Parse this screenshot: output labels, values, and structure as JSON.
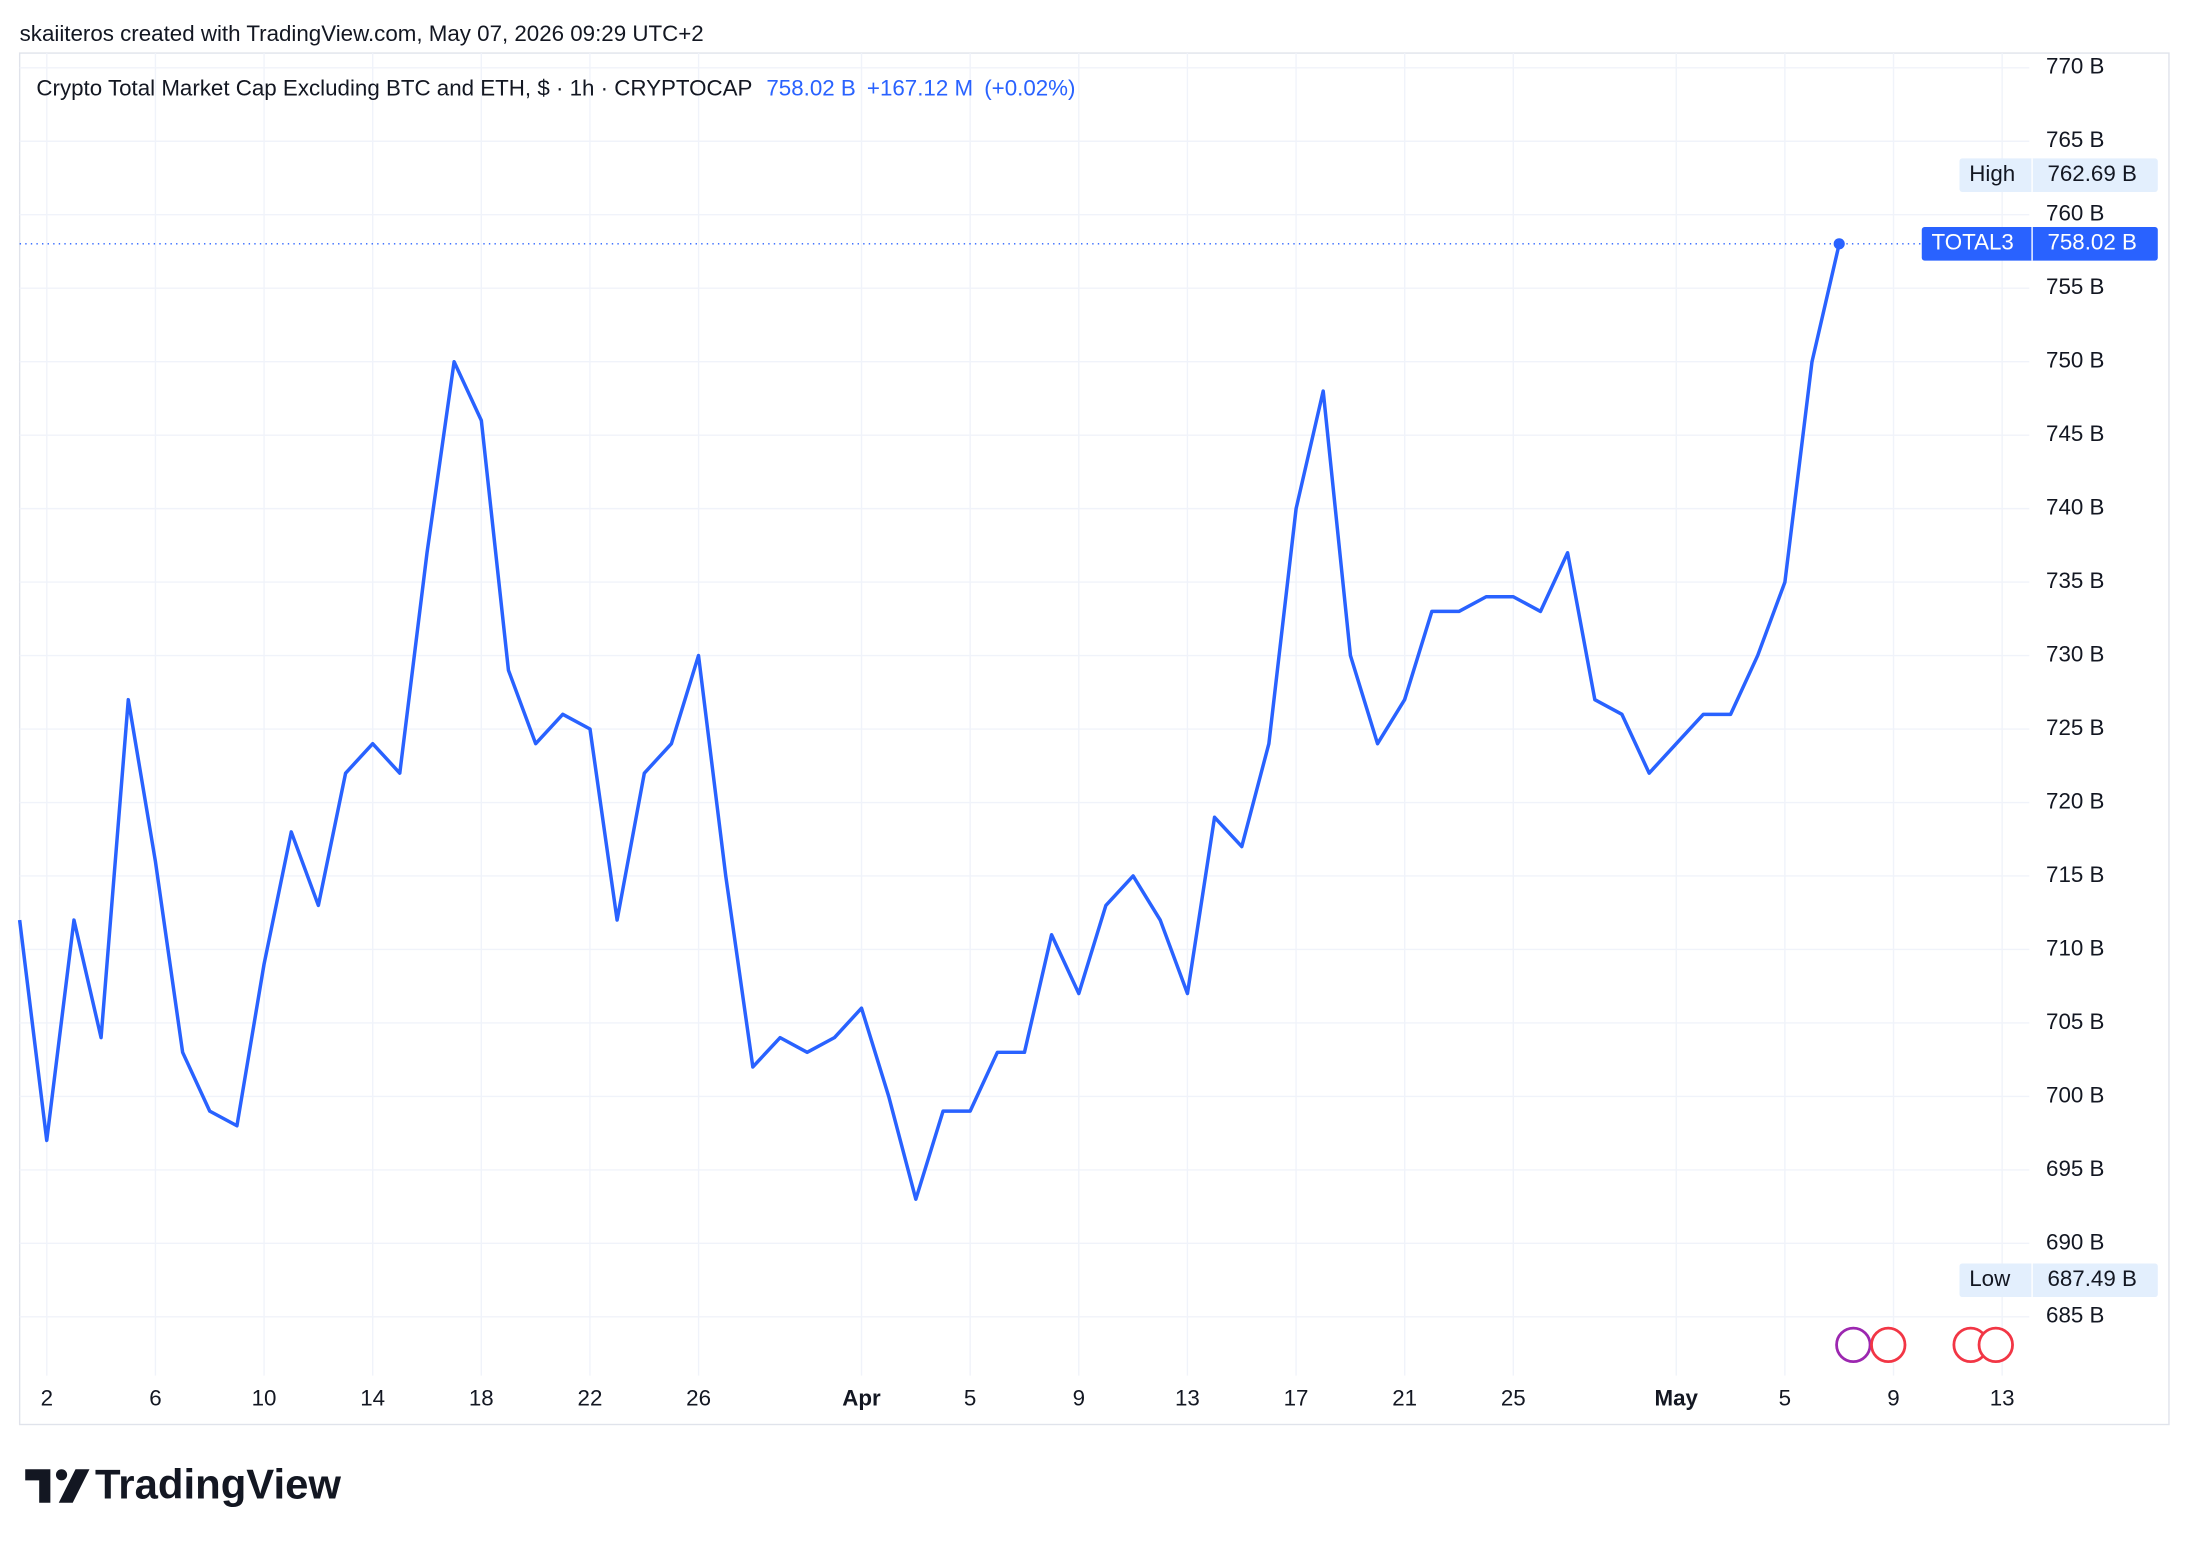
{
  "attribution": "skaiiteros created with TradingView.com, May 07, 2026 09:29 UTC+2",
  "brand": "TradingView",
  "chart_data": {
    "type": "line",
    "title": "Crypto Total Market Cap Excluding BTC and ETH, $ · 1h · CRYPTOCAP",
    "header_price": "758.02 B",
    "header_change": "+167.12 M",
    "header_change_pct": "(+0.02%)",
    "x": [
      "2026-03-01",
      "2026-03-02",
      "2026-03-03",
      "2026-03-04",
      "2026-03-05",
      "2026-03-06",
      "2026-03-07",
      "2026-03-08",
      "2026-03-09",
      "2026-03-10",
      "2026-03-11",
      "2026-03-12",
      "2026-03-13",
      "2026-03-14",
      "2026-03-15",
      "2026-03-16",
      "2026-03-17",
      "2026-03-18",
      "2026-03-19",
      "2026-03-20",
      "2026-03-21",
      "2026-03-22",
      "2026-03-23",
      "2026-03-24",
      "2026-03-25",
      "2026-03-26",
      "2026-03-27",
      "2026-03-28",
      "2026-03-29",
      "2026-03-30",
      "2026-03-31",
      "2026-04-01",
      "2026-04-02",
      "2026-04-03",
      "2026-04-04",
      "2026-04-05",
      "2026-04-06",
      "2026-04-07",
      "2026-04-08",
      "2026-04-09",
      "2026-04-10",
      "2026-04-11",
      "2026-04-12",
      "2026-04-13",
      "2026-04-14",
      "2026-04-15",
      "2026-04-16",
      "2026-04-17",
      "2026-04-18",
      "2026-04-19",
      "2026-04-20",
      "2026-04-21",
      "2026-04-22",
      "2026-04-23",
      "2026-04-24",
      "2026-04-25",
      "2026-04-26",
      "2026-04-27",
      "2026-04-28",
      "2026-04-29",
      "2026-04-30",
      "2026-05-01",
      "2026-05-02",
      "2026-05-03",
      "2026-05-04",
      "2026-05-05",
      "2026-05-06",
      "2026-05-07"
    ],
    "series": [
      {
        "name": "TOTAL3",
        "color": "#2962ff",
        "values": [
          712,
          697,
          712,
          704,
          727,
          716,
          703,
          699,
          698,
          709,
          718,
          713,
          722,
          724,
          722,
          737,
          750,
          746,
          729,
          724,
          726,
          725,
          712,
          722,
          724,
          730,
          715,
          702,
          704,
          703,
          704,
          706,
          700,
          693,
          699,
          699,
          703,
          703,
          711,
          707,
          713,
          715,
          712,
          707,
          719,
          717,
          724,
          740,
          748,
          730,
          724,
          727,
          733,
          733,
          734,
          734,
          733,
          737,
          727,
          726,
          722,
          724,
          726,
          726,
          730,
          735,
          750,
          758.02
        ],
        "value_labels": {
          "67": "758.02 B"
        }
      }
    ],
    "high": {
      "label": "High",
      "value": 762.69,
      "value_label": "762.69 B"
    },
    "low": {
      "label": "Low",
      "value": 687.49,
      "value_label": "687.49 B"
    },
    "xlim": [
      "2026-03-01",
      "2026-05-14"
    ],
    "xticks": [
      {
        "value": "2026-03-02",
        "label": "2"
      },
      {
        "value": "2026-03-06",
        "label": "6"
      },
      {
        "value": "2026-03-10",
        "label": "10"
      },
      {
        "value": "2026-03-14",
        "label": "14"
      },
      {
        "value": "2026-03-18",
        "label": "18"
      },
      {
        "value": "2026-03-22",
        "label": "22"
      },
      {
        "value": "2026-03-26",
        "label": "26"
      },
      {
        "value": "2026-04-01",
        "label": "Apr"
      },
      {
        "value": "2026-04-05",
        "label": "5"
      },
      {
        "value": "2026-04-09",
        "label": "9"
      },
      {
        "value": "2026-04-13",
        "label": "13"
      },
      {
        "value": "2026-04-17",
        "label": "17"
      },
      {
        "value": "2026-04-21",
        "label": "21"
      },
      {
        "value": "2026-04-25",
        "label": "25"
      },
      {
        "value": "2026-05-01",
        "label": "May"
      },
      {
        "value": "2026-05-05",
        "label": "5"
      },
      {
        "value": "2026-05-09",
        "label": "9"
      },
      {
        "value": "2026-05-13",
        "label": "13"
      }
    ],
    "ylim": [
      681,
      771
    ],
    "yticks": [
      {
        "value": 685,
        "label": "685 B"
      },
      {
        "value": 690,
        "label": "690 B"
      },
      {
        "value": 695,
        "label": "695 B"
      },
      {
        "value": 700,
        "label": "700 B"
      },
      {
        "value": 705,
        "label": "705 B"
      },
      {
        "value": 710,
        "label": "710 B"
      },
      {
        "value": 715,
        "label": "715 B"
      },
      {
        "value": 720,
        "label": "720 B"
      },
      {
        "value": 725,
        "label": "725 B"
      },
      {
        "value": 730,
        "label": "730 B"
      },
      {
        "value": 735,
        "label": "735 B"
      },
      {
        "value": 740,
        "label": "740 B"
      },
      {
        "value": 745,
        "label": "745 B"
      },
      {
        "value": 750,
        "label": "750 B"
      },
      {
        "value": 755,
        "label": "755 B"
      },
      {
        "value": 760,
        "label": "760 B"
      },
      {
        "value": 765,
        "label": "765 B"
      },
      {
        "value": 770,
        "label": "770 B"
      }
    ],
    "grid": true
  }
}
